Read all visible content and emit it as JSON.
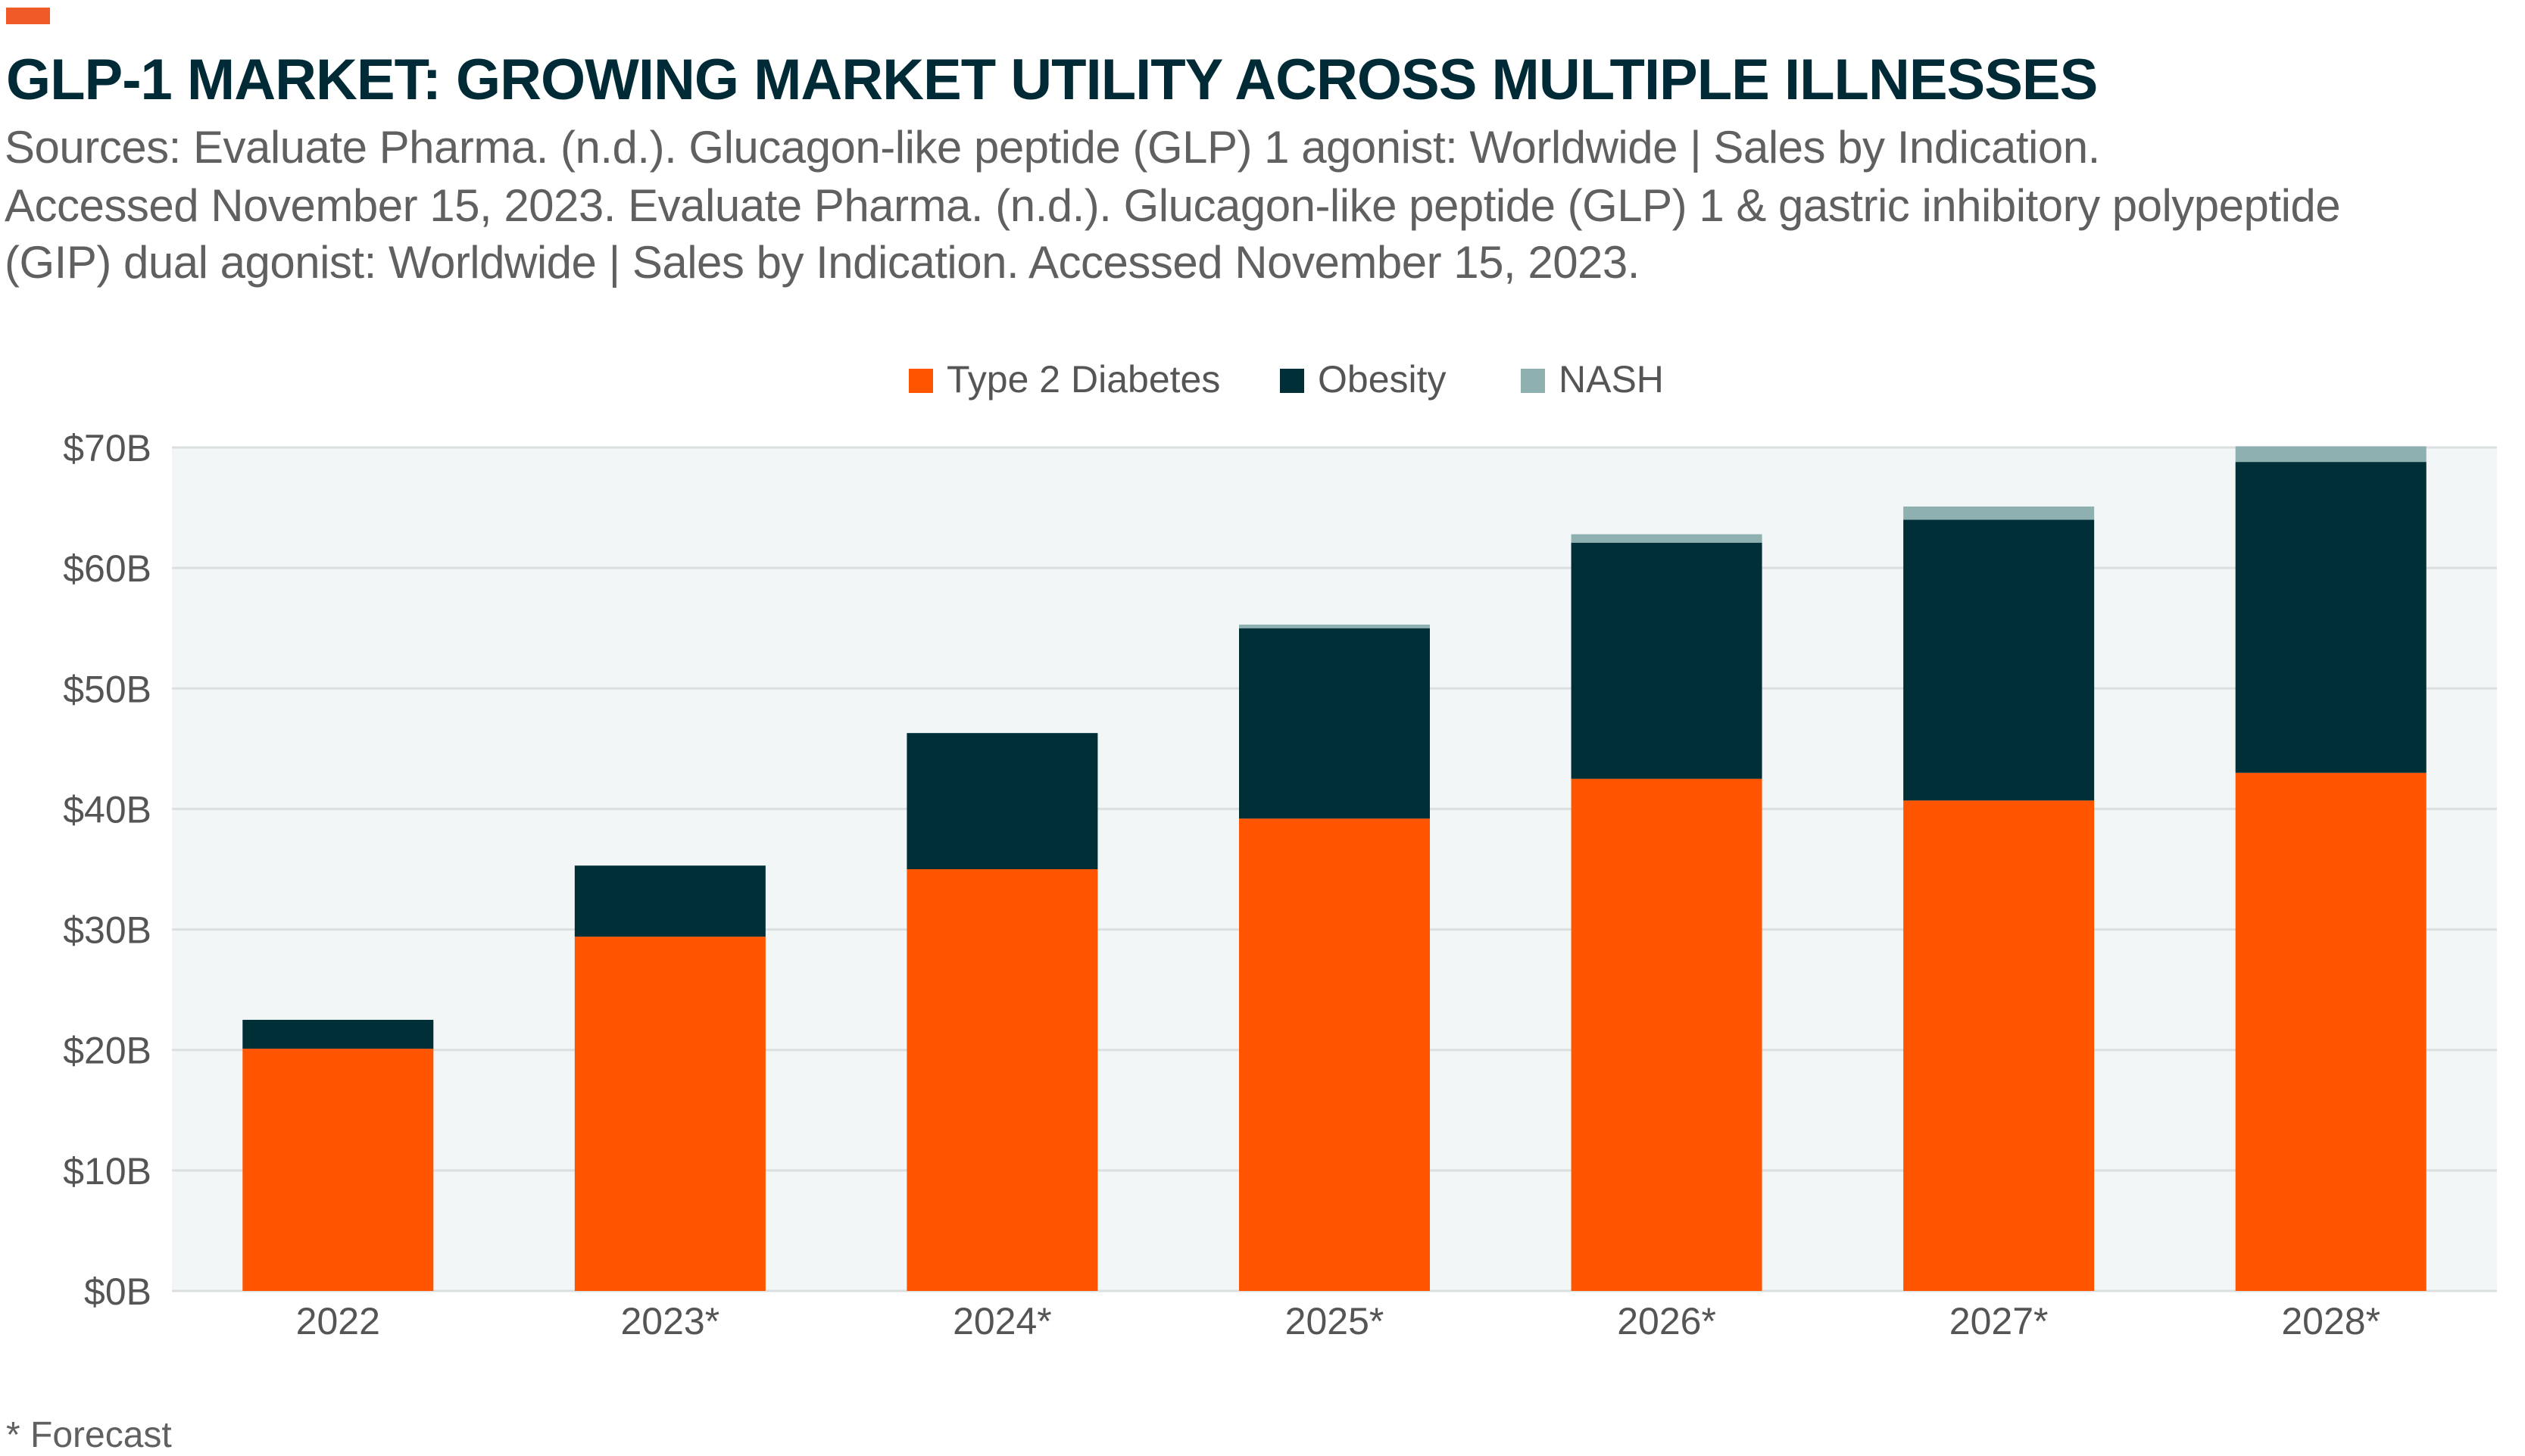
{
  "title": "GLP-1 MARKET: GROWING MARKET UTILITY ACROSS MULTIPLE ILLNESSES",
  "sources": [
    "Sources: Evaluate Pharma. (n.d.). Glucagon-like peptide (GLP) 1 agonist: Worldwide | Sales by Indication.",
    "Accessed November 15, 2023. Evaluate Pharma. (n.d.). Glucagon-like peptide (GLP) 1 & gastric inhibitory polypeptide",
    "(GIP) dual agonist: Worldwide | Sales by Indication. Accessed November 15, 2023."
  ],
  "footnote": "* Forecast",
  "chart_data": {
    "type": "bar",
    "stacked": true,
    "categories": [
      "2022",
      "2023*",
      "2024*",
      "2025*",
      "2026*",
      "2027*",
      "2028*"
    ],
    "series": [
      {
        "name": "Type 2 Diabetes",
        "color": "#ff5500",
        "values": [
          20.1,
          29.4,
          35.0,
          39.2,
          42.5,
          40.7,
          43.0
        ]
      },
      {
        "name": "Obesity",
        "color": "#002f38",
        "values": [
          2.4,
          5.9,
          11.3,
          15.8,
          19.6,
          23.3,
          25.8
        ]
      },
      {
        "name": "NASH",
        "color": "#8eb0b0",
        "values": [
          0,
          0,
          0,
          0.3,
          0.7,
          1.1,
          1.3
        ]
      }
    ],
    "yticks": [
      "$0B",
      "$10B",
      "$20B",
      "$30B",
      "$40B",
      "$50B",
      "$60B",
      "$70B"
    ],
    "ylim": [
      0,
      70
    ],
    "ylabel": "",
    "xlabel": "",
    "grid": true,
    "legend": "top-center",
    "plot_background": "#f2f6f6"
  }
}
